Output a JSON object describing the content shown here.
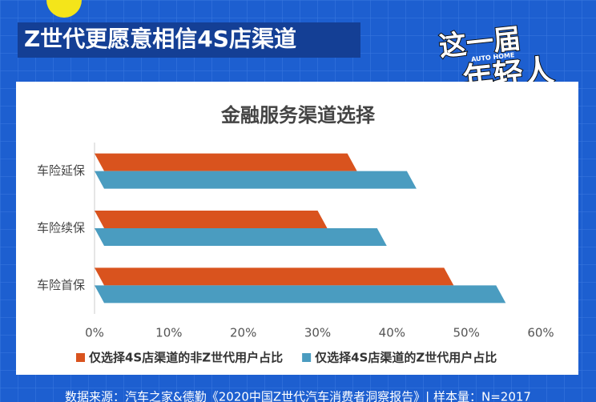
{
  "header": {
    "title": "Z世代更愿意相信4S店渠道",
    "logo_line1": "这一届",
    "logo_line2": "年轻人",
    "logo_brand": "AUTO HOME"
  },
  "chart_data": {
    "type": "bar",
    "orientation": "horizontal",
    "title": "金融服务渠道选择",
    "categories": [
      "车险延保",
      "车险续保",
      "车险首保"
    ],
    "series": [
      {
        "name": "仅选择4S店渠道的非Z世代用户占比",
        "color": "#d9531e",
        "values": [
          34,
          30,
          47
        ]
      },
      {
        "name": "仅选择4S店渠道的Z世代用户占比",
        "color": "#4a9cc0",
        "values": [
          42,
          38,
          54
        ]
      }
    ],
    "xlim": [
      0,
      60
    ],
    "xticks": [
      {
        "value": 0,
        "label": "0%"
      },
      {
        "value": 10,
        "label": "10%"
      },
      {
        "value": 20,
        "label": "20%"
      },
      {
        "value": 30,
        "label": "30%"
      },
      {
        "value": 40,
        "label": "40%"
      },
      {
        "value": 50,
        "label": "50%"
      },
      {
        "value": 60,
        "label": "60%"
      }
    ],
    "legend": "bottom"
  },
  "footer": {
    "source": "数据来源：汽车之家&德勤《2020中国Z世代汽车消费者洞察报告》| 样本量：N=2017"
  }
}
